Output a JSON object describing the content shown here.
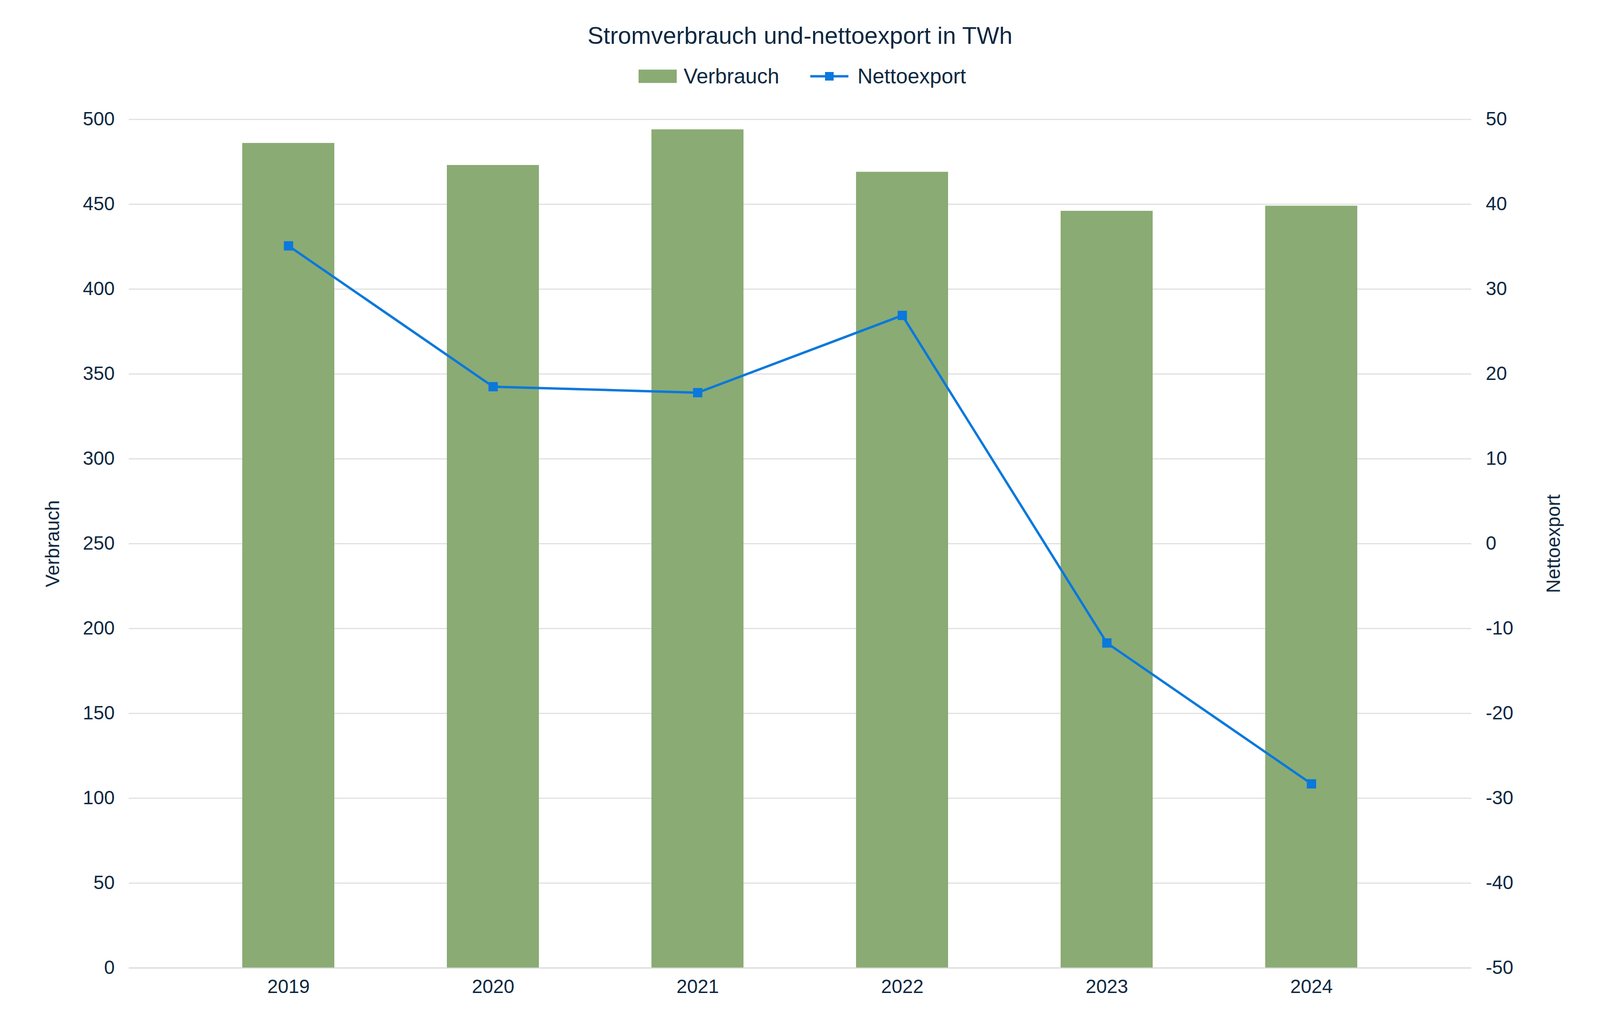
{
  "chart_data": {
    "type": "bar",
    "title": "Stromverbrauch und-nettoexport in TWh",
    "categories": [
      "2019",
      "2020",
      "2021",
      "2022",
      "2023",
      "2024"
    ],
    "series": [
      {
        "name": "Verbrauch",
        "type": "bar",
        "color": "#8aab74",
        "values": [
          486,
          473,
          494,
          469,
          446,
          449
        ]
      },
      {
        "name": "Nettoexport",
        "type": "line",
        "color": "#0a78dc",
        "marker": "square",
        "axis": "y2",
        "values": [
          35.1,
          18.5,
          17.8,
          26.9,
          -11.7,
          -28.3
        ]
      }
    ],
    "ylabel": "Verbrauch",
    "y2label": "Nettoexport",
    "ylim": [
      0,
      500
    ],
    "yticks": [
      0,
      50,
      100,
      150,
      200,
      250,
      300,
      350,
      400,
      450,
      500
    ],
    "y2lim": [
      -50,
      50
    ],
    "y2ticks": [
      -50,
      -40,
      -30,
      -20,
      -10,
      0,
      10,
      20,
      30,
      40,
      50
    ],
    "grid": true,
    "legend": "top"
  }
}
